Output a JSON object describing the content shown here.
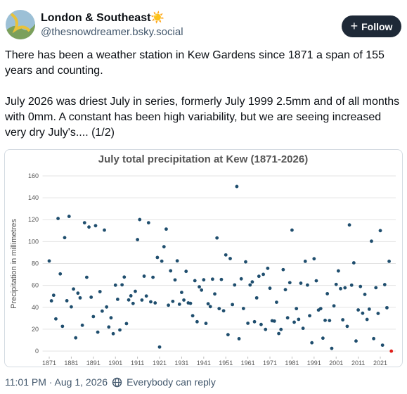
{
  "post": {
    "author": {
      "name": "London & Southeast☀️",
      "handle": "@thesnowdreamer.bsky.social"
    },
    "follow_button": "Follow",
    "text": [
      "There has been a weather station in Kew Gardens since 1871 a span of 155 years and counting.",
      "July 2026 was driest July in series, formerly July 1999 2.5mm and of all months with 0mm. A constant has been high variability, but we are seeing increased very dry July's.... (1/2)"
    ],
    "timestamp": "11:01 PM · Aug 1, 2026",
    "reply_setting": "Everybody can reply"
  },
  "chart_data": {
    "type": "scatter",
    "title": "July total precipitation at Kew (1871-2026)",
    "y_label": "Precipitation in millimetres",
    "x": [
      1871,
      1872,
      1873,
      1874,
      1875,
      1876,
      1877,
      1878,
      1879,
      1880,
      1881,
      1882,
      1883,
      1884,
      1885,
      1886,
      1887,
      1888,
      1889,
      1890,
      1891,
      1892,
      1893,
      1894,
      1895,
      1896,
      1897,
      1898,
      1899,
      1900,
      1901,
      1902,
      1903,
      1904,
      1905,
      1906,
      1907,
      1908,
      1909,
      1910,
      1911,
      1912,
      1913,
      1914,
      1915,
      1916,
      1917,
      1918,
      1919,
      1920,
      1921,
      1922,
      1923,
      1924,
      1925,
      1926,
      1927,
      1928,
      1929,
      1930,
      1931,
      1932,
      1933,
      1934,
      1935,
      1936,
      1937,
      1938,
      1939,
      1940,
      1941,
      1942,
      1943,
      1944,
      1945,
      1946,
      1947,
      1948,
      1949,
      1950,
      1951,
      1952,
      1953,
      1954,
      1955,
      1956,
      1957,
      1958,
      1959,
      1960,
      1961,
      1962,
      1963,
      1964,
      1965,
      1966,
      1967,
      1968,
      1969,
      1970,
      1971,
      1972,
      1973,
      1974,
      1975,
      1976,
      1977,
      1978,
      1979,
      1980,
      1981,
      1982,
      1983,
      1984,
      1985,
      1986,
      1987,
      1988,
      1989,
      1990,
      1991,
      1992,
      1993,
      1994,
      1995,
      1996,
      1997,
      1998,
      1999,
      2000,
      2001,
      2002,
      2003,
      2004,
      2005,
      2006,
      2007,
      2008,
      2009,
      2010,
      2011,
      2012,
      2013,
      2014,
      2015,
      2016,
      2017,
      2018,
      2019,
      2020,
      2021,
      2022,
      2023,
      2024,
      2025,
      2026
    ],
    "values": [
      82.3,
      45.9,
      51.0,
      29.4,
      121.1,
      70.5,
      22.6,
      103.6,
      46.0,
      123.0,
      40.4,
      56.7,
      12.1,
      52.9,
      48.6,
      23.6,
      117.2,
      67.4,
      113.3,
      49.2,
      31.5,
      114.5,
      17.3,
      54.3,
      36.5,
      110.5,
      40.3,
      22.0,
      30.4,
      15.9,
      60.2,
      47.3,
      19.3,
      60.5,
      67.6,
      25.1,
      46.7,
      50.5,
      43.5,
      54.6,
      101.8,
      120.1,
      46.6,
      68.4,
      50.3,
      117.2,
      45.0,
      67.4,
      44.0,
      85.5,
      3.7,
      82.1,
      95.3,
      111.4,
      41.9,
      73.3,
      45.4,
      65.0,
      82.4,
      42.8,
      53.6,
      46.6,
      72.8,
      44.0,
      43.6,
      32.3,
      64.3,
      26.8,
      58.7,
      55.7,
      65.1,
      25.3,
      43.2,
      40.6,
      65.7,
      52.2,
      103.3,
      38.8,
      65.4,
      36.8,
      87.8,
      15.0,
      84.5,
      42.5,
      60.4,
      150.3,
      11.3,
      66.0,
      38.9,
      81.5,
      25.4,
      60.4,
      63.2,
      26.8,
      48.6,
      68.3,
      24.3,
      70.1,
      19.8,
      75.6,
      57.4,
      27.7,
      27.4,
      44.6,
      16.0,
      19.8,
      74.4,
      56.1,
      30.4,
      62.5,
      110.5,
      26.4,
      38.8,
      29.0,
      62.0,
      20.8,
      82.0,
      60.3,
      32.3,
      7.6,
      84.3,
      64.2,
      37.5,
      38.8,
      11.8,
      28.1,
      52.4,
      27.9,
      2.5,
      41.3,
      60.9,
      73.2,
      57.0,
      28.6,
      57.8,
      22.6,
      115.2,
      60.2,
      80.6,
      9.2,
      37.6,
      59.0,
      34.6,
      51.8,
      28.9,
      38.3,
      100.4,
      11.4,
      57.9,
      34.4,
      110.0,
      5.4,
      60.7,
      39.6,
      82.0,
      0.0
    ],
    "color": "#1f4e6e",
    "highlight": {
      "x": 2026,
      "color": "#e0201b"
    },
    "xlim": [
      1868,
      2028
    ],
    "xticks": [
      1871,
      1881,
      1891,
      1901,
      1911,
      1921,
      1931,
      1941,
      1951,
      1961,
      1971,
      1981,
      1991,
      2001,
      2011,
      2021
    ],
    "ylim": [
      -5,
      165
    ],
    "yticks": [
      0,
      20,
      40,
      60,
      80,
      100,
      120,
      140,
      160
    ],
    "grid": true
  }
}
